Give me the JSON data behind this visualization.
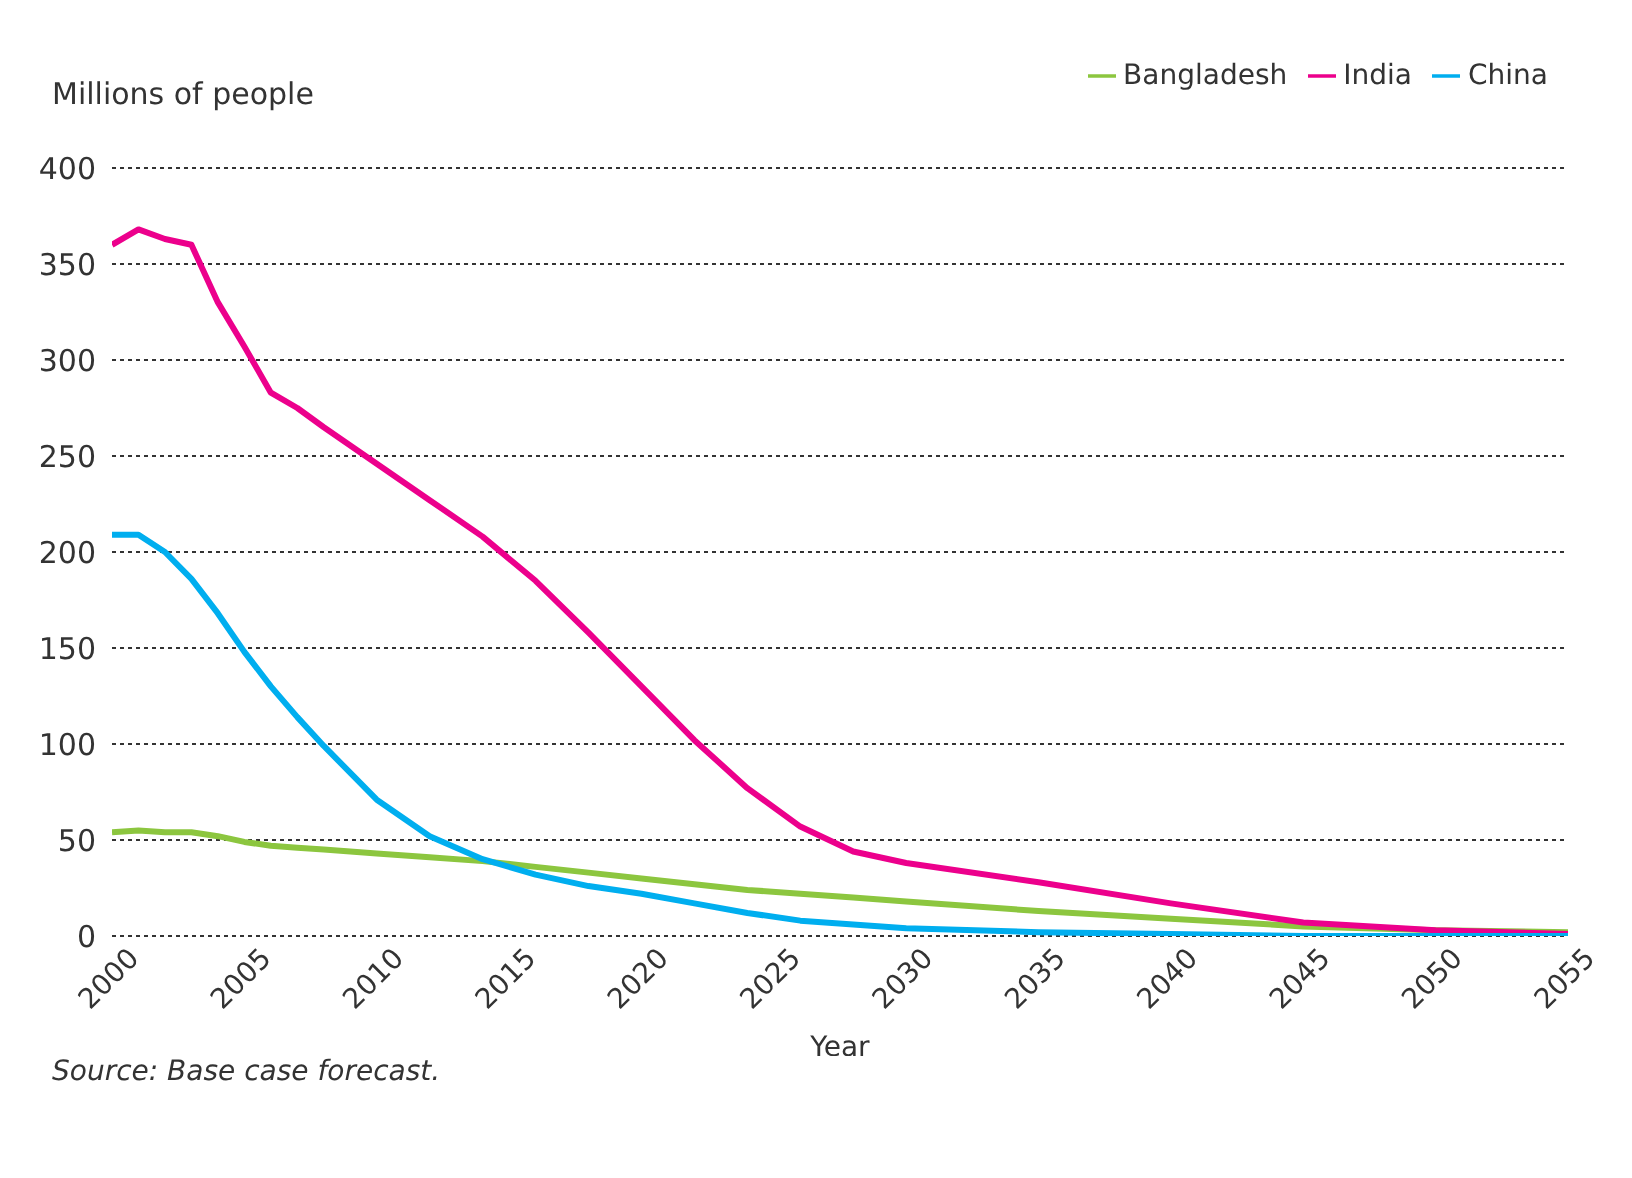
{
  "chart_data": {
    "type": "line",
    "ylabel": "Millions of people",
    "xlabel": "Year",
    "annotations": [
      "Source: Base case forecast."
    ],
    "x": [
      2000,
      2001,
      2002,
      2003,
      2004,
      2005,
      2006,
      2007,
      2008,
      2010,
      2012,
      2014,
      2016,
      2018,
      2020,
      2022,
      2024,
      2026,
      2028,
      2030,
      2035,
      2040,
      2045,
      2050,
      2055
    ],
    "series": [
      {
        "name": "Bangladesh",
        "color": "#8cc63f",
        "values": [
          54,
          55,
          54,
          54,
          52,
          49,
          47,
          46,
          45,
          43,
          41,
          39,
          36,
          33,
          30,
          27,
          24,
          22,
          20,
          18,
          13,
          9,
          5,
          3,
          2
        ]
      },
      {
        "name": "India",
        "color": "#ec008c",
        "values": [
          360,
          368,
          363,
          360,
          330,
          307,
          283,
          275,
          265,
          246,
          227,
          208,
          185,
          158,
          130,
          102,
          77,
          57,
          44,
          38,
          28,
          17,
          7,
          3,
          1
        ]
      },
      {
        "name": "China",
        "color": "#00aeef",
        "values": [
          209,
          209,
          200,
          186,
          168,
          148,
          130,
          114,
          99,
          71,
          52,
          40,
          32,
          26,
          22,
          17,
          12,
          8,
          6,
          4,
          2,
          1,
          0,
          0,
          0
        ]
      }
    ],
    "xlim": [
      2000,
      2055
    ],
    "xticks": [
      2000,
      2005,
      2010,
      2015,
      2020,
      2025,
      2030,
      2035,
      2040,
      2045,
      2050,
      2055
    ],
    "ylim": [
      0,
      400
    ],
    "yticks": [
      0,
      50,
      100,
      150,
      200,
      250,
      300,
      350,
      400
    ],
    "grid": "y",
    "legend": "top right",
    "marker": "none",
    "line_style": "solid"
  }
}
